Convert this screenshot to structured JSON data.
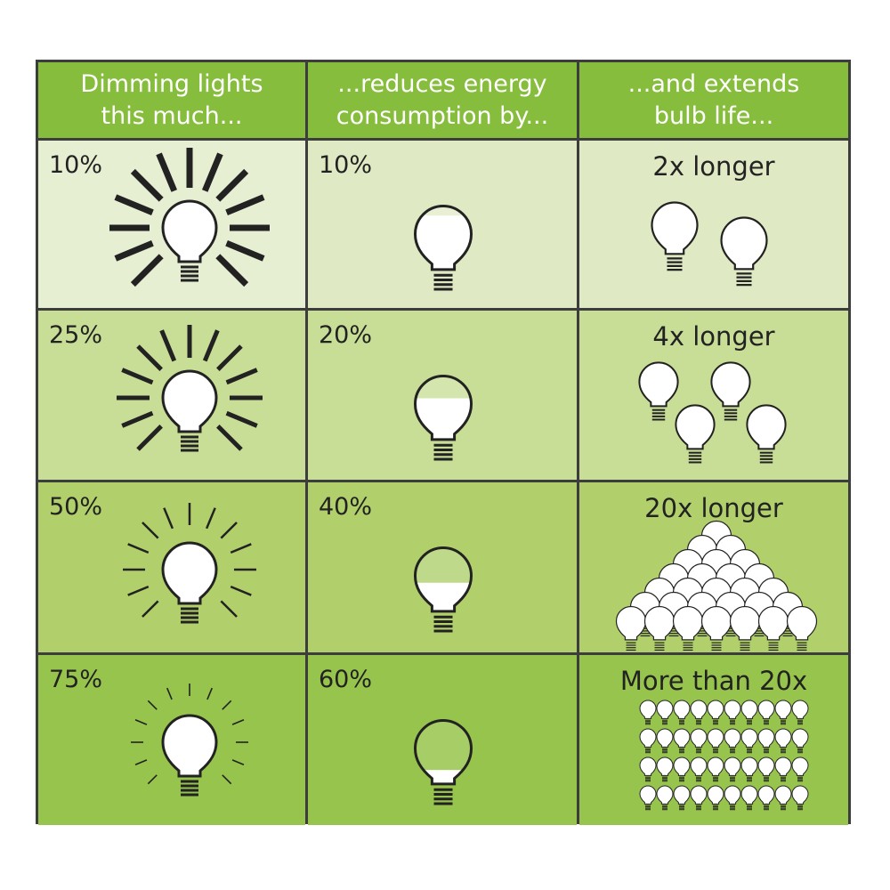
{
  "table": {
    "header": [
      "Dimming lights this much...",
      "...reduces energy consumption by...",
      "...and extends bulb life..."
    ],
    "rows": [
      [
        "10%",
        "10%",
        "2x longer"
      ],
      [
        "25%",
        "20%",
        "4x longer"
      ],
      [
        "50%",
        "40%",
        "20x longer"
      ],
      [
        "75%",
        "60%",
        "More than 20x"
      ]
    ]
  }
}
